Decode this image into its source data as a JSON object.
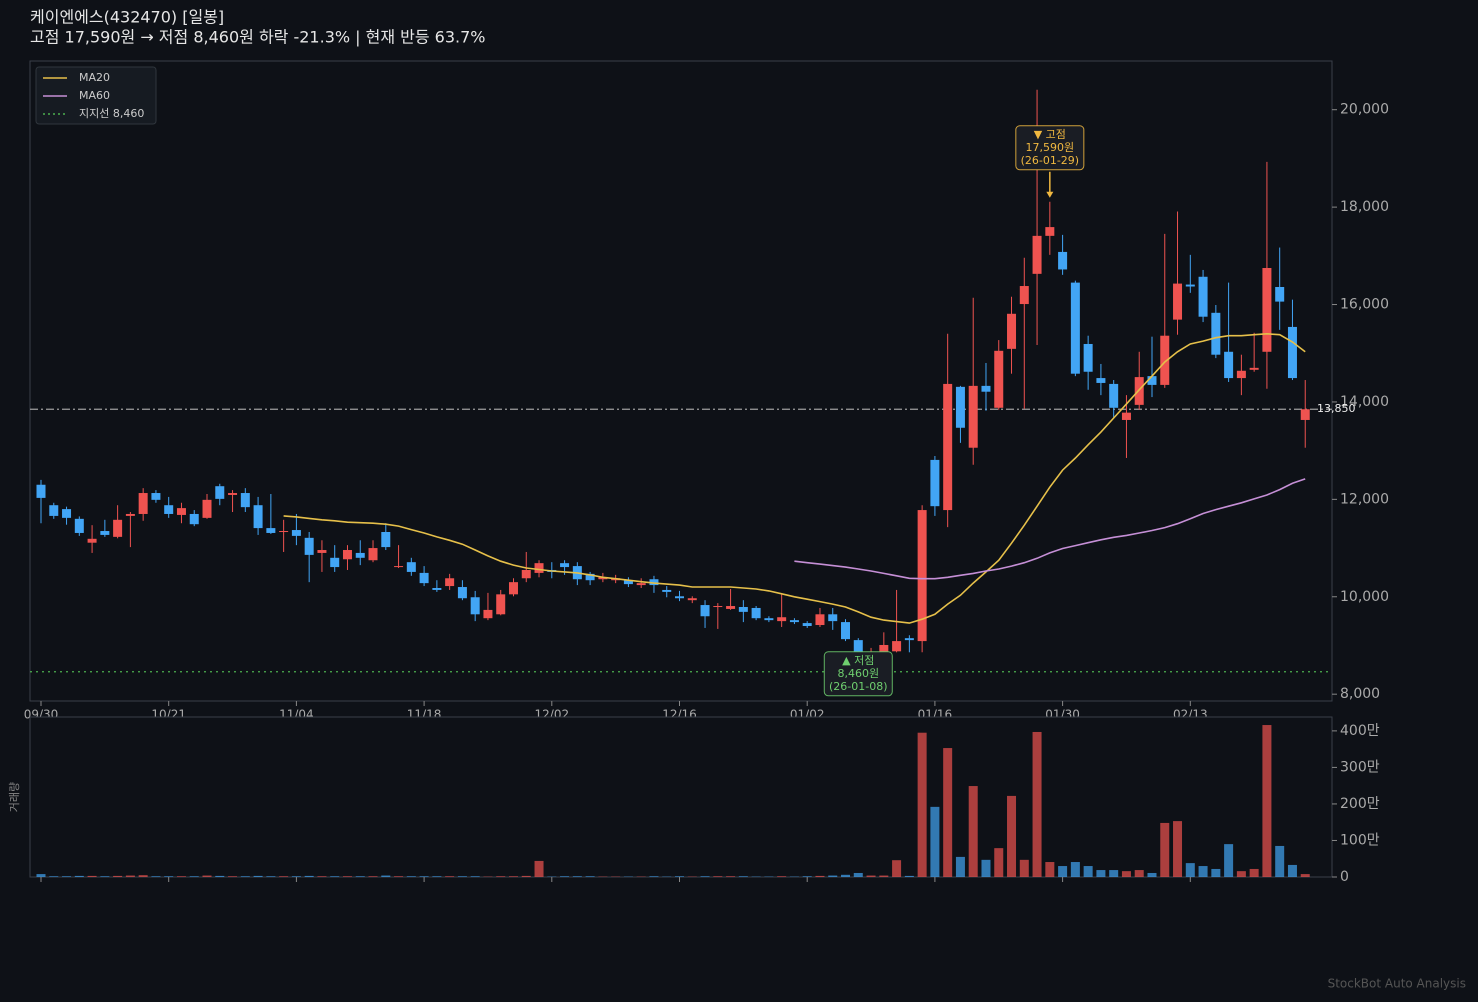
{
  "chart_data": {
    "type": "candlestick",
    "title": "케이엔에스(432470)  [일봉]",
    "subtitle": "고점 17,590원 → 저점 8,460원  하락 -21.3%  |  현재 반등 63.7%",
    "up_color": "#ef5350",
    "down_color": "#42a5f5",
    "categories": [
      "09/30",
      null,
      null,
      null,
      null,
      null,
      null,
      null,
      null,
      null,
      "10/21",
      null,
      null,
      null,
      null,
      null,
      null,
      null,
      null,
      null,
      "11/04",
      null,
      null,
      null,
      null,
      null,
      null,
      null,
      null,
      null,
      "11/18",
      null,
      null,
      null,
      null,
      null,
      null,
      null,
      null,
      null,
      "12/02",
      null,
      null,
      null,
      null,
      null,
      null,
      null,
      null,
      null,
      "12/16",
      null,
      null,
      null,
      null,
      null,
      null,
      null,
      null,
      null,
      "01/02",
      null,
      null,
      null,
      null,
      null,
      null,
      null,
      null,
      null,
      "01/16",
      null,
      null,
      null,
      null,
      null,
      null,
      null,
      null,
      null,
      "01/30",
      null,
      null,
      null,
      null,
      null,
      null,
      null,
      null,
      null,
      "02/13",
      null,
      null,
      null,
      null,
      null,
      null,
      null,
      null,
      null
    ],
    "open": [
      12300,
      11880,
      11800,
      11600,
      11110,
      11350,
      11230,
      11660,
      11700,
      12130,
      11880,
      11680,
      11700,
      11620,
      12270,
      12090,
      12130,
      11880,
      11410,
      11330,
      11370,
      11210,
      10900,
      10800,
      10770,
      10900,
      10750,
      11330,
      10610,
      10710,
      10490,
      10180,
      10220,
      10200,
      9990,
      9560,
      9640,
      10050,
      10380,
      10490,
      10550,
      10690,
      10630,
      10470,
      10360,
      10340,
      10340,
      10240,
      10360,
      10140,
      10010,
      9930,
      9830,
      9790,
      9750,
      9790,
      9770,
      9560,
      9500,
      9520,
      9460,
      9420,
      9640,
      9480,
      9110,
      8800,
      8840,
      8880,
      9150,
      9090,
      12810,
      11780,
      14310,
      13060,
      14330,
      13880,
      15090,
      16010,
      16630,
      17410,
      17080,
      16450,
      15190,
      14490,
      14370,
      13630,
      13940,
      14530,
      14350,
      15690,
      16410,
      16570,
      15830,
      15030,
      14490,
      14660,
      15030,
      16360,
      15540,
      13630
    ],
    "high": [
      12400,
      11930,
      11850,
      11650,
      11470,
      11580,
      11880,
      11740,
      12230,
      12190,
      12050,
      11930,
      11780,
      12110,
      12320,
      12190,
      12230,
      12050,
      12110,
      11580,
      11700,
      11330,
      11160,
      11060,
      11060,
      11160,
      11160,
      11510,
      11060,
      10800,
      10630,
      10340,
      10470,
      10340,
      10120,
      10080,
      10140,
      10380,
      10920,
      10750,
      10710,
      10750,
      10710,
      10510,
      10490,
      10450,
      10400,
      10380,
      10430,
      10220,
      10120,
      10010,
      9930,
      9870,
      10160,
      9930,
      9810,
      9600,
      10060,
      9560,
      9500,
      9770,
      9770,
      9540,
      9150,
      8950,
      9270,
      10140,
      9210,
      11880,
      12890,
      15400,
      14330,
      16140,
      14800,
      15270,
      16160,
      16960,
      20410,
      18110,
      17430,
      16490,
      15360,
      14780,
      14450,
      14140,
      15030,
      15340,
      17450,
      17910,
      17020,
      16710,
      15990,
      16450,
      14970,
      15420,
      18930,
      17170,
      16100,
      14450
    ],
    "low": [
      11510,
      11600,
      11480,
      11250,
      10900,
      11230,
      11200,
      11020,
      11560,
      11930,
      11620,
      11510,
      11450,
      11600,
      11880,
      11740,
      11740,
      11270,
      11290,
      10920,
      11060,
      10300,
      10510,
      10510,
      10550,
      10650,
      10710,
      10960,
      10590,
      10430,
      10220,
      10100,
      10140,
      9930,
      9500,
      9520,
      9620,
      10010,
      10300,
      10400,
      10380,
      10450,
      10240,
      10240,
      10300,
      10280,
      10200,
      10180,
      10080,
      9990,
      9910,
      9870,
      9360,
      9340,
      9730,
      9480,
      9520,
      9480,
      9380,
      9440,
      9360,
      9380,
      9320,
      9090,
      8460,
      8700,
      8700,
      8860,
      8860,
      8860,
      11660,
      11430,
      13160,
      12710,
      13820,
      13840,
      14580,
      13860,
      15170,
      17020,
      16610,
      14530,
      14250,
      14140,
      13670,
      12850,
      13840,
      14100,
      14290,
      15380,
      16240,
      15640,
      14900,
      14410,
      14140,
      14620,
      14270,
      15480,
      14450,
      13060
    ],
    "close": [
      12030,
      11660,
      11620,
      11310,
      11190,
      11270,
      11580,
      11700,
      12130,
      11990,
      11700,
      11820,
      11490,
      11990,
      12010,
      12130,
      11840,
      11410,
      11310,
      11350,
      11250,
      10860,
      10960,
      10610,
      10960,
      10800,
      11000,
      11020,
      10630,
      10510,
      10280,
      10140,
      10380,
      9970,
      9640,
      9730,
      10050,
      10300,
      10550,
      10690,
      10510,
      10610,
      10360,
      10340,
      10400,
      10380,
      10260,
      10280,
      10240,
      10100,
      9970,
      9970,
      9600,
      9810,
      9810,
      9690,
      9560,
      9520,
      9580,
      9480,
      9400,
      9640,
      9500,
      9130,
      8820,
      8870,
      9010,
      9090,
      9110,
      11780,
      11860,
      14370,
      13470,
      14330,
      14210,
      15050,
      15810,
      16380,
      17410,
      17590,
      16720,
      14580,
      14620,
      14390,
      13880,
      13780,
      14510,
      14350,
      15360,
      16430,
      16370,
      15750,
      14970,
      14490,
      14640,
      14700,
      16750,
      16060,
      14490,
      13850
    ],
    "ylim": [
      7860,
      21000
    ],
    "yticks": [
      {
        "value": 8000,
        "label": "8,000"
      },
      {
        "value": 10000,
        "label": "10,000"
      },
      {
        "value": 12000,
        "label": "12,000"
      },
      {
        "value": 14000,
        "label": "14,000"
      },
      {
        "value": 16000,
        "label": "16,000"
      },
      {
        "value": 18000,
        "label": "18,000"
      },
      {
        "value": 20000,
        "label": "20,000"
      }
    ],
    "lines": [
      {
        "name": "MA20",
        "color": "#e6c04a",
        "values": [
          null,
          null,
          null,
          null,
          null,
          null,
          null,
          null,
          null,
          null,
          null,
          null,
          null,
          null,
          null,
          null,
          null,
          null,
          null,
          11660,
          11640,
          11610,
          11580,
          11560,
          11530,
          11520,
          11510,
          11490,
          11450,
          11380,
          11310,
          11230,
          11160,
          11080,
          10960,
          10840,
          10730,
          10650,
          10590,
          10560,
          10530,
          10510,
          10490,
          10450,
          10400,
          10370,
          10340,
          10310,
          10280,
          10260,
          10240,
          10200,
          10200,
          10200,
          10200,
          10180,
          10160,
          10120,
          10060,
          10000,
          9950,
          9900,
          9850,
          9790,
          9690,
          9580,
          9520,
          9490,
          9460,
          9540,
          9640,
          9850,
          10030,
          10280,
          10510,
          10750,
          11100,
          11470,
          11860,
          12250,
          12600,
          12850,
          13120,
          13380,
          13670,
          13960,
          14250,
          14530,
          14820,
          15030,
          15190,
          15250,
          15320,
          15360,
          15360,
          15380,
          15400,
          15380,
          15230,
          15030
        ]
      },
      {
        "name": "MA60",
        "color": "#c58fd6",
        "values": [
          null,
          null,
          null,
          null,
          null,
          null,
          null,
          null,
          null,
          null,
          null,
          null,
          null,
          null,
          null,
          null,
          null,
          null,
          null,
          null,
          null,
          null,
          null,
          null,
          null,
          null,
          null,
          null,
          null,
          null,
          null,
          null,
          null,
          null,
          null,
          null,
          null,
          null,
          null,
          null,
          null,
          null,
          null,
          null,
          null,
          null,
          null,
          null,
          null,
          null,
          null,
          null,
          null,
          null,
          null,
          null,
          null,
          null,
          null,
          10730,
          10700,
          10670,
          10640,
          10610,
          10570,
          10530,
          10480,
          10430,
          10380,
          10370,
          10370,
          10400,
          10440,
          10480,
          10530,
          10570,
          10630,
          10700,
          10790,
          10900,
          10990,
          11050,
          11110,
          11170,
          11220,
          11260,
          11310,
          11360,
          11420,
          11500,
          11600,
          11710,
          11790,
          11860,
          11930,
          12010,
          12090,
          12200,
          12330,
          12420
        ]
      }
    ],
    "support": {
      "name": "지지선 8,460",
      "value": 8460,
      "color": "#4caf50"
    },
    "current": {
      "value": 13850,
      "label": "13,850",
      "color": "#9e9e9e"
    },
    "annotations": [
      {
        "marker": "▼ 고점",
        "value": 17590,
        "value_label": "17,590원",
        "date": "(26-01-29)",
        "color": "#f0b840"
      },
      {
        "marker": "▲ 저점",
        "value": 8460,
        "value_label": "8,460원",
        "date": "(26-01-08)",
        "color": "#6fcf6f"
      }
    ],
    "volume": {
      "label": "거래량",
      "values": [
        80000,
        20000,
        20000,
        30000,
        30000,
        20000,
        30000,
        40000,
        50000,
        20000,
        20000,
        20000,
        20000,
        40000,
        30000,
        20000,
        20000,
        30000,
        20000,
        20000,
        20000,
        30000,
        20000,
        20000,
        20000,
        20000,
        20000,
        40000,
        20000,
        20000,
        20000,
        20000,
        20000,
        20000,
        20000,
        10000,
        20000,
        20000,
        30000,
        440000,
        10000,
        20000,
        20000,
        20000,
        10000,
        10000,
        10000,
        10000,
        20000,
        10000,
        20000,
        10000,
        20000,
        20000,
        20000,
        20000,
        10000,
        10000,
        20000,
        10000,
        20000,
        30000,
        40000,
        60000,
        110000,
        40000,
        40000,
        460000,
        30000,
        3950000,
        1920000,
        3530000,
        550000,
        2490000,
        470000,
        790000,
        2220000,
        470000,
        3970000,
        410000,
        300000,
        410000,
        300000,
        190000,
        190000,
        160000,
        190000,
        110000,
        1480000,
        1530000,
        380000,
        300000,
        220000,
        900000,
        160000,
        220000,
        4160000,
        850000,
        330000,
        80000
      ],
      "ylim": [
        0,
        4380000
      ],
      "yticks": [
        0,
        {
          "value": 1000000,
          "label": "100만"
        },
        {
          "value": 2000000,
          "label": "200만"
        },
        {
          "value": 3000000,
          "label": "300만"
        },
        {
          "value": 4000000,
          "label": "400만"
        }
      ]
    },
    "watermark": "StockBot Auto Analysis"
  }
}
